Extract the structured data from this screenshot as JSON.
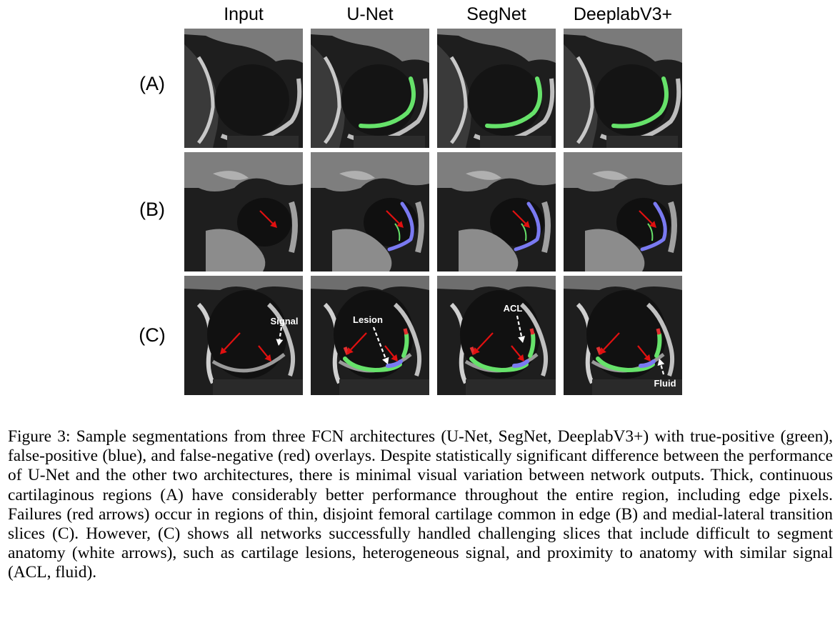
{
  "figure": {
    "columns": [
      "Input",
      "U-Net",
      "SegNet",
      "DeeplabV3+"
    ],
    "rows": [
      "(A)",
      "(B)",
      "(C)"
    ],
    "annotations": {
      "signal": "Signal",
      "lesion": "Lesion",
      "acl": "ACL",
      "fluid": "Fluid"
    },
    "overlay_colors": {
      "true_positive": "#66e26a",
      "false_positive": "#7a7af2",
      "false_negative": "#e03030",
      "failure_arrow": "#e01010",
      "white_arrow": "#ffffff"
    },
    "caption": "Figure 3: Sample segmentations from three FCN architectures (U-Net, SegNet, DeeplabV3+) with true-positive (green), false-positive (blue), and false-negative (red) overlays. Despite statistically significant difference between the performance of U-Net and the other two architectures, there is minimal visual variation between network outputs. Thick, continuous cartilaginous regions (A) have considerably better performance throughout the entire region, including edge pixels. Failures (red arrows) occur in regions of thin, disjoint femoral cartilage common in edge (B) and medial-lateral transition slices (C). However, (C) shows all networks successfully handled challenging slices that include difficult to segment anatomy (white arrows), such as cartilage lesions, heterogeneous signal, and proximity to anatomy with similar signal (ACL, fluid)."
  }
}
